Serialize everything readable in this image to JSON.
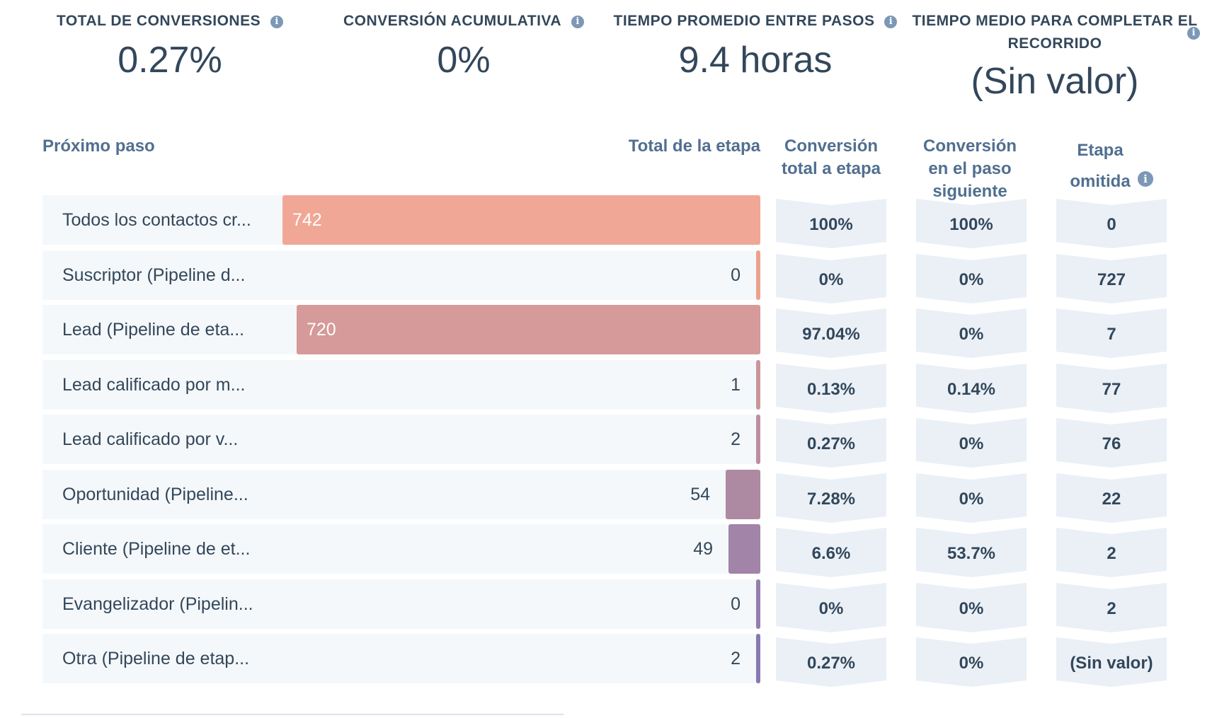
{
  "kpis": [
    {
      "label": "TOTAL DE CONVERSIONES",
      "value": "0.27%"
    },
    {
      "label": "CONVERSIÓN ACUMULATIVA",
      "value": "0%"
    },
    {
      "label": "TIEMPO PROMEDIO ENTRE PASOS",
      "value": "9.4 horas"
    },
    {
      "label": "TIEMPO MEDIO PARA COMPLETAR EL RECORRIDO",
      "value": "(Sin valor)"
    }
  ],
  "info_icon_glyph": "i",
  "table": {
    "headers": {
      "step": "Próximo paso",
      "stage_total": "Total de la etapa",
      "conv_total": "Conversión total a etapa",
      "conv_next": "Conversión en el paso siguiente",
      "skipped": "Etapa omitida"
    },
    "rows": [
      {
        "label": "Todos los contactos cr...",
        "total": "742",
        "conv_total": "100%",
        "conv_next": "100%",
        "skipped": "0",
        "color": "#f0a795"
      },
      {
        "label": "Suscriptor (Pipeline d...",
        "total": "0",
        "conv_total": "0%",
        "conv_next": "0%",
        "skipped": "727",
        "color": "#eba18d"
      },
      {
        "label": "Lead (Pipeline de eta...",
        "total": "720",
        "conv_total": "97.04%",
        "conv_next": "0%",
        "skipped": "7",
        "color": "#d59a99"
      },
      {
        "label": "Lead calificado por m...",
        "total": "1",
        "conv_total": "0.13%",
        "conv_next": "0.14%",
        "skipped": "77",
        "color": "#c8959b"
      },
      {
        "label": "Lead calificado por v...",
        "total": "2",
        "conv_total": "0.27%",
        "conv_next": "0%",
        "skipped": "76",
        "color": "#bd8f9e"
      },
      {
        "label": "Oportunidad (Pipeline...",
        "total": "54",
        "conv_total": "7.28%",
        "conv_next": "0%",
        "skipped": "22",
        "color": "#ae8aa2"
      },
      {
        "label": "Cliente (Pipeline de et...",
        "total": "49",
        "conv_total": "6.6%",
        "conv_next": "53.7%",
        "skipped": "2",
        "color": "#a184a8"
      },
      {
        "label": "Evangelizador (Pipelin...",
        "total": "0",
        "conv_total": "0%",
        "conv_next": "0%",
        "skipped": "2",
        "color": "#947eac"
      },
      {
        "label": "Otra (Pipeline de etap...",
        "total": "2",
        "conv_total": "0.27%",
        "conv_next": "0%",
        "skipped": "(Sin valor)",
        "color": "#8779b1"
      }
    ]
  }
}
